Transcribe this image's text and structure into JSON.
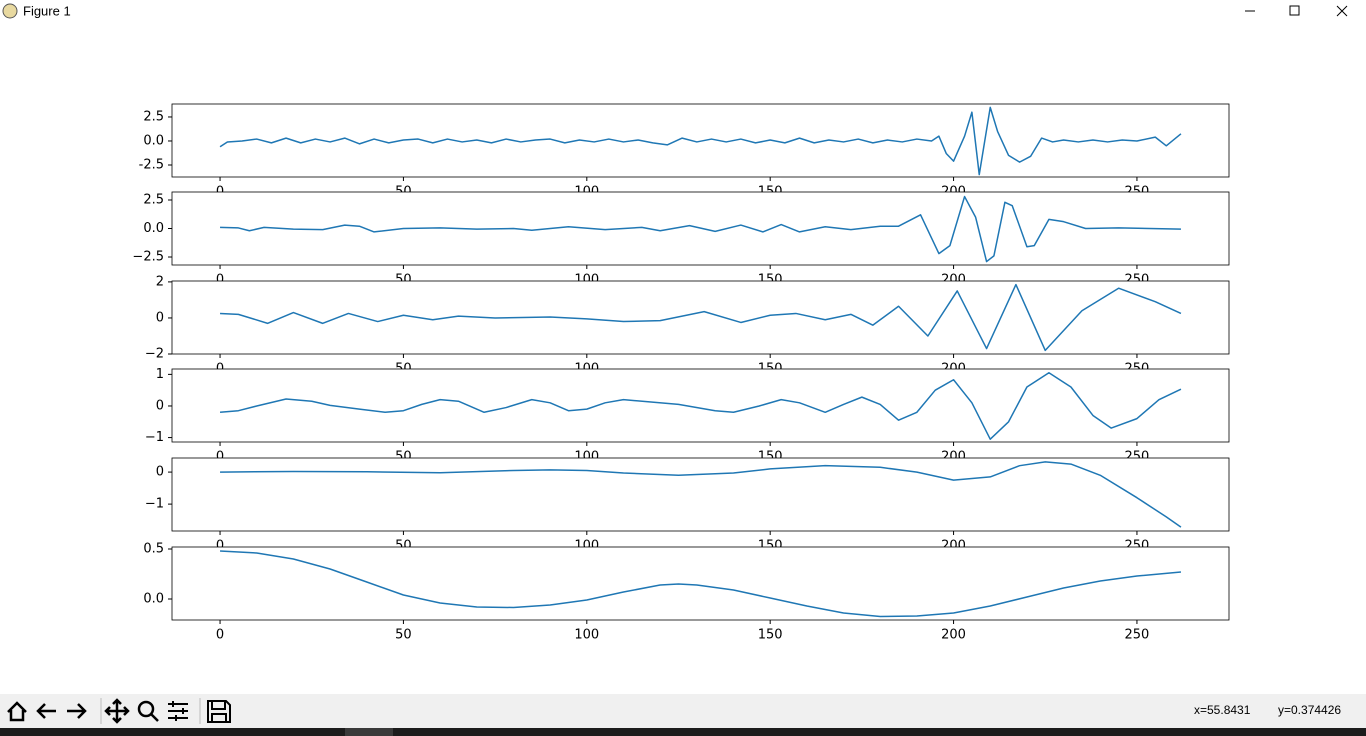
{
  "window": {
    "title": "Figure 1"
  },
  "status": {
    "x": "x=55.8431",
    "y": "y=0.374426"
  },
  "chart_data": [
    {
      "type": "line",
      "color": "#1f77b4",
      "xlim": [
        -13.1,
        275.1
      ],
      "ylim": [
        -3.75,
        3.85
      ],
      "xticks": [
        0,
        50,
        100,
        150,
        200,
        250
      ],
      "yticks": [
        -2.5,
        {
          "value": 0,
          "label": "0.0"
        },
        2.5
      ],
      "x": [
        0,
        2,
        6,
        10,
        14,
        18,
        22,
        26,
        30,
        34,
        38,
        42,
        46,
        50,
        54,
        58,
        62,
        66,
        70,
        74,
        78,
        82,
        86,
        90,
        94,
        98,
        102,
        106,
        110,
        114,
        118,
        122,
        126,
        130,
        134,
        138,
        142,
        146,
        150,
        154,
        158,
        162,
        166,
        170,
        174,
        178,
        182,
        186,
        190,
        194,
        196,
        198,
        200,
        203,
        205,
        207,
        210,
        212,
        215,
        218,
        221,
        224,
        227,
        230,
        234,
        238,
        242,
        246,
        250,
        255,
        258,
        262
      ],
      "values": [
        -0.6,
        -0.1,
        0.0,
        0.2,
        -0.2,
        0.3,
        -0.2,
        0.2,
        -0.1,
        0.3,
        -0.3,
        0.2,
        -0.2,
        0.1,
        0.2,
        -0.2,
        0.2,
        -0.1,
        0.1,
        -0.2,
        0.2,
        -0.1,
        0.1,
        0.2,
        -0.2,
        0.1,
        -0.1,
        0.2,
        -0.1,
        0.1,
        -0.2,
        -0.4,
        0.3,
        -0.1,
        0.2,
        -0.1,
        0.2,
        -0.2,
        0.1,
        -0.2,
        0.3,
        -0.2,
        0.1,
        -0.1,
        0.2,
        -0.2,
        0.1,
        -0.1,
        0.2,
        0.0,
        0.5,
        -1.3,
        -2.1,
        0.5,
        3.0,
        -3.5,
        3.5,
        1.0,
        -1.5,
        -2.2,
        -1.6,
        0.3,
        -0.1,
        0.1,
        -0.1,
        0.1,
        -0.1,
        0.1,
        0.0,
        0.4,
        -0.5,
        0.75
      ]
    },
    {
      "type": "line",
      "color": "#1f77b4",
      "xlim": [
        -13.1,
        275.1
      ],
      "ylim": [
        -3.2,
        3.2
      ],
      "xticks": [
        0,
        50,
        100,
        150,
        200,
        250
      ],
      "yticks": [
        {
          "value": -2.5,
          "label": "−2.5"
        },
        {
          "value": 0,
          "label": "0.0"
        },
        2.5
      ],
      "x": [
        0,
        5,
        8,
        12,
        20,
        28,
        34,
        38,
        42,
        50,
        60,
        70,
        80,
        85,
        95,
        105,
        115,
        120,
        128,
        135,
        142,
        148,
        153,
        158,
        165,
        172,
        180,
        185,
        191,
        196,
        199,
        203,
        206,
        209,
        211,
        214,
        216,
        220,
        222,
        226,
        230,
        236,
        245,
        262
      ],
      "values": [
        0.1,
        0.05,
        -0.2,
        0.1,
        -0.05,
        -0.1,
        0.3,
        0.2,
        -0.3,
        0.0,
        0.05,
        -0.05,
        0.0,
        -0.15,
        0.15,
        -0.1,
        0.1,
        -0.2,
        0.25,
        -0.25,
        0.3,
        -0.3,
        0.35,
        -0.3,
        0.15,
        -0.1,
        0.2,
        0.2,
        1.2,
        -2.2,
        -1.5,
        2.8,
        1.0,
        -2.9,
        -2.4,
        2.3,
        2.0,
        -1.6,
        -1.5,
        0.8,
        0.6,
        0.0,
        0.05,
        -0.05
      ]
    },
    {
      "type": "line",
      "color": "#1f77b4",
      "xlim": [
        -13.1,
        275.1
      ],
      "ylim": [
        -2.0,
        2.05
      ],
      "xticks": [
        0,
        50,
        100,
        150,
        200,
        250
      ],
      "yticks": [
        {
          "value": -2,
          "label": "−2"
        },
        0,
        2
      ],
      "x": [
        0,
        5,
        13,
        20,
        28,
        35,
        43,
        50,
        58,
        65,
        75,
        90,
        100,
        110,
        120,
        132,
        142,
        150,
        157,
        165,
        172,
        178,
        185,
        193,
        201,
        209,
        217,
        225,
        235,
        245,
        255,
        262
      ],
      "values": [
        0.25,
        0.2,
        -0.3,
        0.3,
        -0.3,
        0.25,
        -0.2,
        0.15,
        -0.1,
        0.1,
        0.0,
        0.05,
        -0.05,
        -0.2,
        -0.15,
        0.35,
        -0.25,
        0.15,
        0.25,
        -0.1,
        0.2,
        -0.4,
        0.65,
        -1.0,
        1.5,
        -1.7,
        1.85,
        -1.8,
        0.4,
        1.65,
        0.9,
        0.25
      ]
    },
    {
      "type": "line",
      "color": "#1f77b4",
      "xlim": [
        -13.1,
        275.1
      ],
      "ylim": [
        -1.14,
        1.17
      ],
      "xticks": [
        0,
        50,
        100,
        150,
        200,
        250
      ],
      "yticks": [
        {
          "value": -1,
          "label": "−1"
        },
        0,
        1
      ],
      "x": [
        0,
        5,
        10,
        18,
        25,
        30,
        38,
        45,
        50,
        55,
        60,
        65,
        72,
        78,
        85,
        90,
        95,
        100,
        105,
        110,
        125,
        135,
        140,
        147,
        153,
        158,
        165,
        170,
        175,
        180,
        185,
        190,
        195,
        200,
        205,
        210,
        215,
        220,
        226,
        232,
        238,
        243,
        250,
        256,
        262
      ],
      "values": [
        -0.2,
        -0.15,
        0.0,
        0.22,
        0.15,
        0.02,
        -0.1,
        -0.2,
        -0.15,
        0.05,
        0.2,
        0.15,
        -0.2,
        -0.05,
        0.2,
        0.1,
        -0.15,
        -0.1,
        0.1,
        0.2,
        0.05,
        -0.15,
        -0.2,
        0.0,
        0.2,
        0.1,
        -0.2,
        0.05,
        0.28,
        0.05,
        -0.45,
        -0.2,
        0.5,
        0.83,
        0.1,
        -1.05,
        -0.5,
        0.6,
        1.05,
        0.6,
        -0.3,
        -0.7,
        -0.4,
        0.2,
        0.53
      ]
    },
    {
      "type": "line",
      "color": "#1f77b4",
      "xlim": [
        -13.1,
        275.1
      ],
      "ylim": [
        -1.84,
        0.44
      ],
      "xticks": [
        0,
        50,
        100,
        150,
        200,
        250
      ],
      "yticks": [
        {
          "value": -1,
          "label": "−1"
        },
        0
      ],
      "x": [
        0,
        20,
        40,
        60,
        80,
        90,
        100,
        110,
        125,
        140,
        150,
        165,
        180,
        190,
        200,
        210,
        218,
        225,
        232,
        240,
        250,
        258,
        262
      ],
      "values": [
        0.0,
        0.02,
        0.01,
        -0.02,
        0.05,
        0.07,
        0.05,
        -0.03,
        -0.1,
        -0.03,
        0.1,
        0.2,
        0.15,
        0.0,
        -0.25,
        -0.15,
        0.2,
        0.32,
        0.25,
        -0.1,
        -0.8,
        -1.4,
        -1.72
      ]
    },
    {
      "type": "line",
      "color": "#1f77b4",
      "xlim": [
        -13.1,
        275.1
      ],
      "ylim": [
        -0.21,
        0.52
      ],
      "xticks": [
        0,
        50,
        100,
        150,
        200,
        250
      ],
      "yticks": [
        {
          "value": 0,
          "label": "0.0"
        },
        0.5
      ],
      "x": [
        0,
        10,
        20,
        30,
        40,
        50,
        60,
        70,
        80,
        90,
        100,
        110,
        120,
        125,
        130,
        140,
        150,
        160,
        170,
        180,
        190,
        200,
        210,
        220,
        230,
        240,
        250,
        262
      ],
      "values": [
        0.48,
        0.46,
        0.4,
        0.3,
        0.17,
        0.04,
        -0.04,
        -0.08,
        -0.085,
        -0.06,
        -0.01,
        0.07,
        0.14,
        0.15,
        0.14,
        0.09,
        0.01,
        -0.07,
        -0.14,
        -0.175,
        -0.17,
        -0.14,
        -0.07,
        0.02,
        0.11,
        0.18,
        0.23,
        0.27
      ]
    }
  ]
}
